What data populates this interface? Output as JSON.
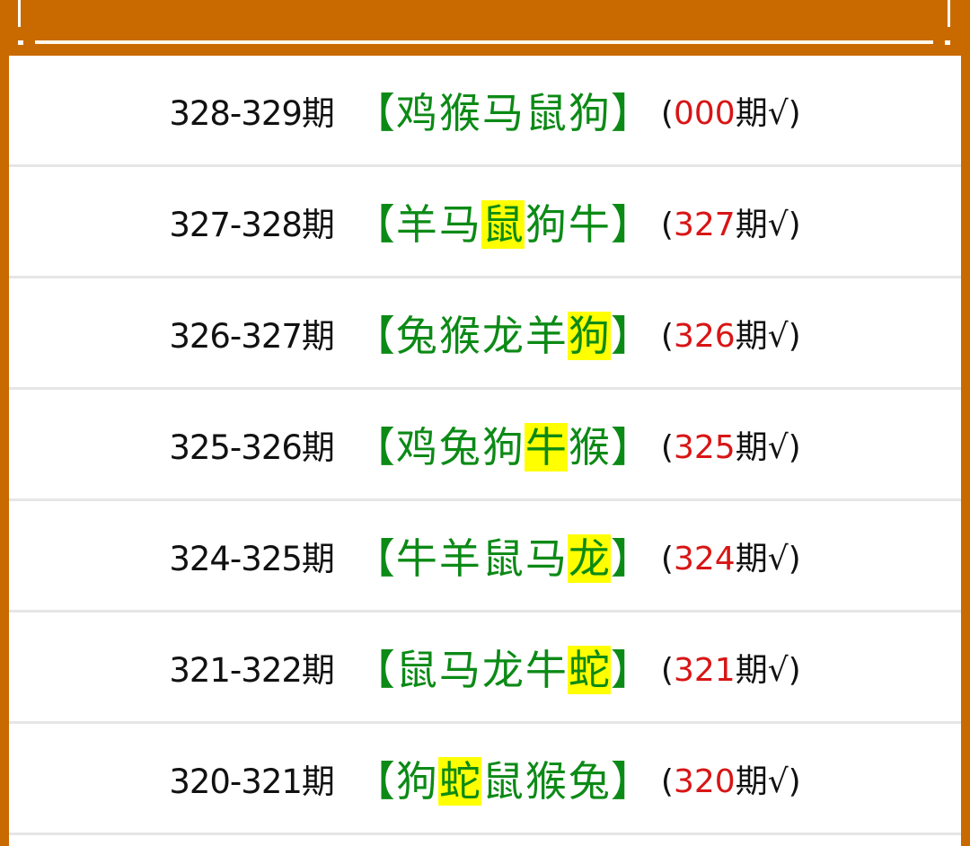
{
  "colors": {
    "background": "#c96a00",
    "animals": "#0c8a16",
    "highlight": "#ffff00",
    "result_number": "#d81515"
  },
  "bracket_open": "【",
  "bracket_close": "】",
  "result_suffix": "期√",
  "rows": [
    {
      "period": "328-329期",
      "animals": [
        "鸡",
        "猴",
        "马",
        "鼠",
        "狗"
      ],
      "highlight": -1,
      "result": "000"
    },
    {
      "period": "327-328期",
      "animals": [
        "羊",
        "马",
        "鼠",
        "狗",
        "牛"
      ],
      "highlight": 2,
      "result": "327"
    },
    {
      "period": "326-327期",
      "animals": [
        "兔",
        "猴",
        "龙",
        "羊",
        "狗"
      ],
      "highlight": 4,
      "result": "326"
    },
    {
      "period": "325-326期",
      "animals": [
        "鸡",
        "兔",
        "狗",
        "牛",
        "猴"
      ],
      "highlight": 3,
      "result": "325"
    },
    {
      "period": "324-325期",
      "animals": [
        "牛",
        "羊",
        "鼠",
        "马",
        "龙"
      ],
      "highlight": 4,
      "result": "324"
    },
    {
      "period": "321-322期",
      "animals": [
        "鼠",
        "马",
        "龙",
        "牛",
        "蛇"
      ],
      "highlight": 4,
      "result": "321"
    },
    {
      "period": "320-321期",
      "animals": [
        "狗",
        "蛇",
        "鼠",
        "猴",
        "兔"
      ],
      "highlight": 1,
      "result": "320"
    }
  ]
}
